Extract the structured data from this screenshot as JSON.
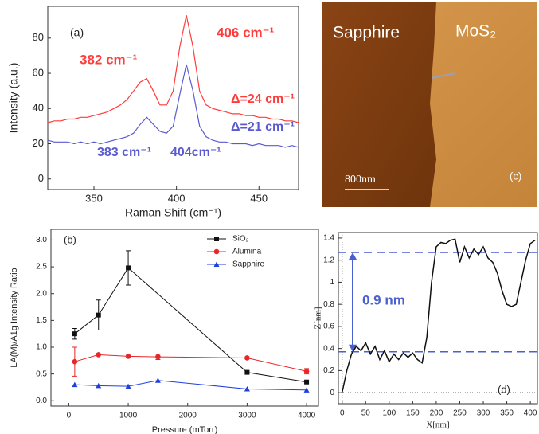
{
  "chart_data": [
    {
      "type": "line",
      "panel": "(a)",
      "x_label": "Raman Shift (cm⁻¹)",
      "y_label": "Intensity (a.u.)",
      "x": [
        322,
        326,
        330,
        334,
        338,
        342,
        346,
        350,
        354,
        358,
        362,
        366,
        370,
        374,
        378,
        382,
        386,
        390,
        394,
        398,
        402,
        406,
        410,
        414,
        418,
        422,
        426,
        430,
        434,
        438,
        442,
        446,
        450,
        454,
        458,
        462,
        466,
        470,
        474
      ],
      "series": [
        {
          "color": "#ff3b3b",
          "values": [
            32,
            33,
            33,
            34,
            34,
            35,
            35,
            36,
            37,
            38,
            40,
            42,
            45,
            50,
            55,
            57,
            50,
            42,
            42,
            50,
            75,
            93,
            75,
            50,
            42,
            40,
            39,
            38,
            37,
            37,
            36,
            36,
            35,
            35,
            34,
            34,
            33,
            33,
            32
          ]
        },
        {
          "color": "#5a5ad0",
          "values": [
            22,
            21,
            21,
            21,
            20,
            21,
            20,
            21,
            20,
            21,
            22,
            23,
            24,
            26,
            31,
            35,
            31,
            27,
            26,
            30,
            48,
            65,
            50,
            30,
            24,
            22,
            21,
            21,
            20,
            20,
            20,
            19,
            20,
            19,
            19,
            19,
            18,
            19,
            18
          ]
        }
      ],
      "annotations": [
        {
          "text": "406 cm⁻¹",
          "color": "#ff3b3b"
        },
        {
          "text": "382 cm⁻¹",
          "color": "#ff3b3b"
        },
        {
          "text": "Δ=24 cm⁻¹",
          "color": "#ff3b3b"
        },
        {
          "text": "Δ=21 cm⁻¹",
          "color": "#5a5ad0"
        },
        {
          "text": "383 cm⁻¹",
          "color": "#5a5ad0"
        },
        {
          "text": "404cm⁻¹",
          "color": "#5a5ad0"
        }
      ],
      "xlim": [
        322,
        474
      ],
      "xticks": [
        350,
        400,
        450
      ],
      "ylim": [
        -6,
        98
      ],
      "yticks": [
        0,
        20,
        40,
        60,
        80
      ]
    },
    {
      "type": "errorbar",
      "panel": "(b)",
      "x_label": "Pressure (mTorr)",
      "y_label": "LA(M)/A1g Intensity Ratio",
      "series": [
        {
          "name": "SiO₂",
          "color": "#111111",
          "marker": "square",
          "x": [
            100,
            500,
            1000,
            3000,
            4000
          ],
          "values": [
            1.25,
            1.6,
            2.48,
            0.53,
            0.35
          ],
          "errors": [
            0.1,
            0.28,
            0.32,
            null,
            null
          ]
        },
        {
          "name": "Alumina",
          "color": "#e8262a",
          "marker": "circle",
          "x": [
            100,
            500,
            1000,
            1500,
            3000,
            4000
          ],
          "values": [
            0.73,
            0.86,
            0.83,
            0.82,
            0.8,
            0.55
          ],
          "errors": [
            0.27,
            null,
            null,
            0.05,
            null,
            0.05
          ]
        },
        {
          "name": "Sapphire",
          "color": "#1f3ee0",
          "marker": "triangle",
          "x": [
            100,
            500,
            1000,
            1500,
            3000,
            4000
          ],
          "values": [
            0.3,
            0.28,
            0.27,
            0.38,
            0.22,
            0.2
          ],
          "errors": [
            null,
            null,
            null,
            null,
            null,
            null
          ]
        }
      ],
      "xlim": [
        -300,
        4200
      ],
      "xticks": [
        0,
        1000,
        2000,
        3000,
        4000
      ],
      "ylim": [
        -0.1,
        3.2
      ],
      "yticks": [
        {
          "value": 0,
          "label": "0.0"
        },
        {
          "value": 0.5,
          "label": "0.5"
        },
        {
          "value": 1,
          "label": "1.0"
        },
        {
          "value": 1.5,
          "label": "1.5"
        },
        {
          "value": 2,
          "label": "2.0"
        },
        {
          "value": 2.5,
          "label": "2.5"
        },
        {
          "value": 3,
          "label": "3.0"
        }
      ]
    },
    {
      "type": "line",
      "panel": "(d)",
      "x_label": "X[nm]",
      "y_label": "Z[nm]",
      "x": [
        0,
        10,
        20,
        30,
        40,
        50,
        60,
        70,
        80,
        90,
        100,
        110,
        120,
        130,
        140,
        150,
        160,
        170,
        180,
        190,
        200,
        210,
        220,
        230,
        240,
        250,
        260,
        270,
        280,
        290,
        300,
        310,
        320,
        330,
        340,
        350,
        360,
        370,
        380,
        390,
        400,
        410
      ],
      "series": [
        {
          "color": "#111111",
          "values": [
            0,
            0.2,
            0.35,
            0.42,
            0.38,
            0.45,
            0.35,
            0.42,
            0.3,
            0.38,
            0.28,
            0.35,
            0.3,
            0.36,
            0.32,
            0.36,
            0.3,
            0.27,
            0.5,
            1.0,
            1.32,
            1.36,
            1.35,
            1.38,
            1.39,
            1.18,
            1.32,
            1.22,
            1.3,
            1.25,
            1.32,
            1.22,
            1.18,
            1.08,
            0.92,
            0.8,
            0.78,
            0.8,
            1.0,
            1.2,
            1.35,
            1.38
          ]
        }
      ],
      "hlines": [
        1.27,
        0.37
      ],
      "hline_color": "#4a5fd0",
      "annotations": [
        {
          "text": "0.9 nm",
          "color": "#4a5fd0"
        }
      ],
      "xlim": [
        -8,
        415
      ],
      "xticks": [
        0,
        50,
        100,
        150,
        200,
        250,
        300,
        350,
        400
      ],
      "ylim": [
        -0.1,
        1.45
      ],
      "yticks": [
        0,
        0.2,
        0.4,
        0.6,
        0.8,
        1,
        1.2,
        1.4
      ]
    }
  ],
  "image": {
    "left_label": "Sapphire",
    "right_label": "MoS₂",
    "scale_bar": "800nm",
    "panel": "(c)"
  }
}
